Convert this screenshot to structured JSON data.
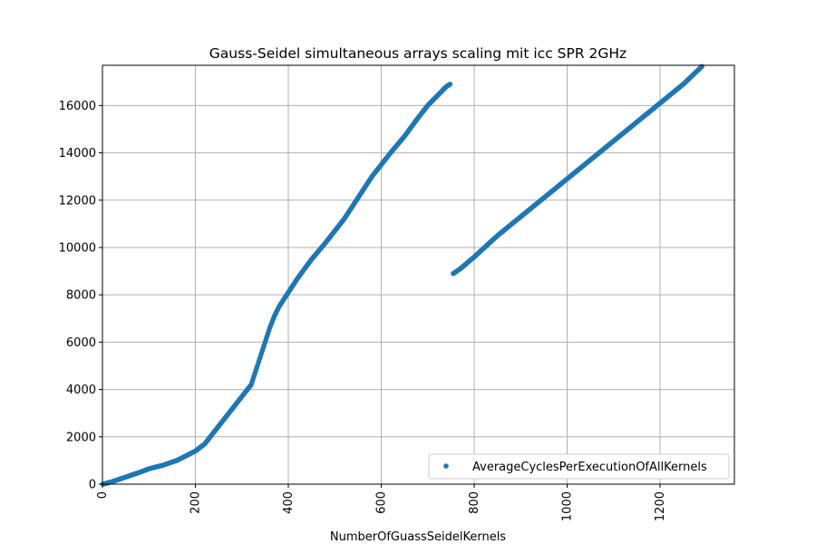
{
  "chart_data": {
    "type": "scatter",
    "title": "Gauss-Seidel simultaneous arrays scaling mit icc SPR 2GHz",
    "xlabel": "NumberOfGuassSeidelKernels",
    "ylabel": "",
    "xlim": [
      0,
      1360
    ],
    "ylim": [
      0,
      17700
    ],
    "xticks": [
      0,
      200,
      400,
      600,
      800,
      1000,
      1200
    ],
    "yticks": [
      0,
      2000,
      4000,
      6000,
      8000,
      10000,
      12000,
      14000,
      16000
    ],
    "grid": true,
    "legend_position": "lower-right",
    "colors": {
      "series": "#1f77b4",
      "grid": "#b0b0b0"
    },
    "series": [
      {
        "name": "AverageCyclesPerExecutionOfAllKernels",
        "marker": "dot",
        "segments": [
          {
            "x": [
              1,
              20,
              50,
              80,
              100,
              130,
              160,
              180,
              200,
              220,
              240,
              260,
              280,
              300,
              320,
              330,
              340,
              350,
              360,
              370,
              380,
              400,
              420,
              450,
              480,
              500,
              520,
              550,
              580,
              600,
              620,
              650,
              680,
              700,
              720,
              740,
              748
            ],
            "y": [
              0,
              100,
              300,
              500,
              650,
              800,
              1000,
              1200,
              1400,
              1700,
              2200,
              2700,
              3200,
              3700,
              4200,
              4800,
              5400,
              6000,
              6600,
              7100,
              7500,
              8100,
              8700,
              9500,
              10200,
              10700,
              11200,
              12100,
              13000,
              13500,
              14000,
              14700,
              15500,
              16000,
              16400,
              16800,
              16900
            ]
          },
          {
            "x": [
              755,
              770,
              800,
              850,
              900,
              950,
              1000,
              1050,
              1100,
              1150,
              1200,
              1250,
              1290
            ],
            "y": [
              8900,
              9100,
              9600,
              10500,
              11300,
              12100,
              12900,
              13700,
              14500,
              15300,
              16100,
              16900,
              17650
            ]
          }
        ]
      }
    ]
  }
}
